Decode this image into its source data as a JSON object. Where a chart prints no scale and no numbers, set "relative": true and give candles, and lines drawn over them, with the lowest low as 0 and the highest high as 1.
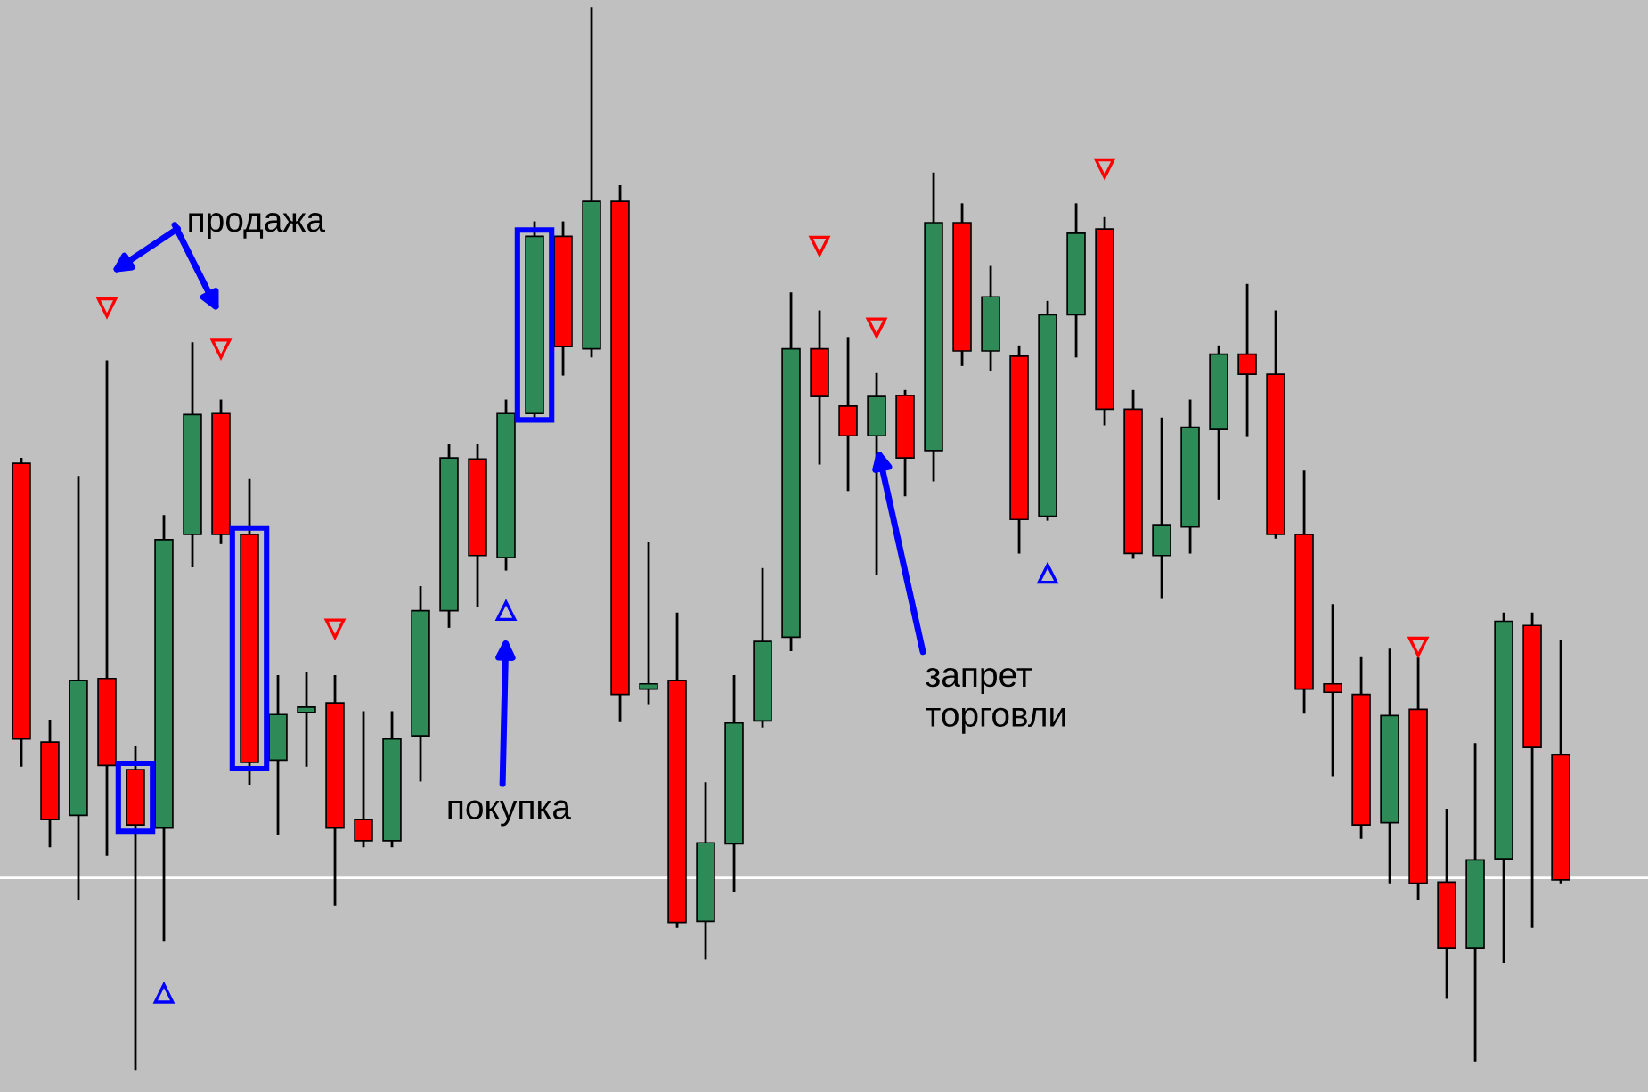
{
  "chart_data": {
    "type": "candlestick",
    "relative": true,
    "categories": [
      null,
      null,
      null,
      null,
      null,
      null,
      null,
      null,
      null,
      null,
      null,
      null,
      null,
      null,
      null,
      null,
      null,
      null,
      null,
      null,
      null,
      null,
      null,
      null,
      null,
      null,
      null,
      null,
      null,
      null,
      null,
      null,
      null,
      null,
      null,
      null,
      null,
      null,
      null,
      null,
      null,
      null,
      null,
      null,
      null,
      null,
      null,
      null,
      null,
      null,
      null,
      null,
      null,
      null,
      null
    ],
    "ohlc": [
      [
        0.571,
        0.575,
        0.286,
        0.311
      ],
      [
        0.308,
        0.328,
        0.21,
        0.235
      ],
      [
        0.239,
        0.558,
        0.16,
        0.366
      ],
      [
        0.368,
        0.667,
        0.202,
        0.286
      ],
      [
        0.282,
        0.303,
        0.0,
        0.23
      ],
      [
        0.227,
        0.521,
        0.121,
        0.499
      ],
      [
        0.504,
        0.684,
        0.474,
        0.617
      ],
      [
        0.618,
        0.63,
        0.496,
        0.504
      ],
      [
        0.504,
        0.555,
        0.269,
        0.289
      ],
      [
        0.291,
        0.37,
        0.222,
        0.334
      ],
      [
        0.336,
        0.373,
        0.286,
        0.341
      ],
      [
        0.345,
        0.37,
        0.155,
        0.227
      ],
      [
        0.235,
        0.336,
        0.21,
        0.215
      ],
      [
        0.215,
        0.336,
        0.21,
        0.311
      ],
      [
        0.314,
        0.454,
        0.272,
        0.432
      ],
      [
        0.432,
        0.588,
        0.417,
        0.576
      ],
      [
        0.575,
        0.588,
        0.437,
        0.484
      ],
      [
        0.482,
        0.63,
        0.471,
        0.618
      ],
      [
        0.618,
        0.798,
        0.613,
        0.785
      ],
      [
        0.785,
        0.798,
        0.655,
        0.681
      ],
      [
        0.679,
        1.0,
        0.672,
        0.818
      ],
      [
        0.818,
        0.832,
        0.328,
        0.353
      ],
      [
        0.358,
        0.496,
        0.345,
        0.363
      ],
      [
        0.366,
        0.429,
        0.134,
        0.138
      ],
      [
        0.139,
        0.269,
        0.104,
        0.213
      ],
      [
        0.212,
        0.37,
        0.168,
        0.326
      ],
      [
        0.328,
        0.471,
        0.323,
        0.403
      ],
      [
        0.407,
        0.731,
        0.395,
        0.679
      ],
      [
        0.679,
        0.714,
        0.571,
        0.634
      ],
      [
        0.625,
        0.689,
        0.546,
        0.597
      ],
      [
        0.597,
        0.655,
        0.467,
        0.634
      ],
      [
        0.635,
        0.639,
        0.541,
        0.576
      ],
      [
        0.583,
        0.844,
        0.555,
        0.798
      ],
      [
        0.798,
        0.815,
        0.664,
        0.677
      ],
      [
        0.677,
        0.756,
        0.659,
        0.728
      ],
      [
        0.672,
        0.681,
        0.487,
        0.518
      ],
      [
        0.521,
        0.723,
        0.518,
        0.711
      ],
      [
        0.711,
        0.815,
        0.672,
        0.788
      ],
      [
        0.792,
        0.802,
        0.608,
        0.622
      ],
      [
        0.622,
        0.639,
        0.482,
        0.486
      ],
      [
        0.484,
        0.613,
        0.445,
        0.513
      ],
      [
        0.511,
        0.63,
        0.487,
        0.605
      ],
      [
        0.603,
        0.681,
        0.538,
        0.674
      ],
      [
        0.674,
        0.739,
        0.597,
        0.655
      ],
      [
        0.655,
        0.714,
        0.501,
        0.504
      ],
      [
        0.504,
        0.563,
        0.336,
        0.358
      ],
      [
        0.363,
        0.437,
        0.277,
        0.355
      ],
      [
        0.353,
        0.387,
        0.218,
        0.23
      ],
      [
        0.232,
        0.395,
        0.176,
        0.333
      ],
      [
        0.339,
        0.387,
        0.16,
        0.175
      ],
      [
        0.176,
        0.244,
        0.067,
        0.114
      ],
      [
        0.114,
        0.306,
        0.008,
        0.197
      ],
      [
        0.198,
        0.429,
        0.101,
        0.422
      ],
      [
        0.418,
        0.429,
        0.134,
        0.303
      ],
      [
        0.296,
        0.403,
        0.176,
        0.178
      ]
    ],
    "colors": [
      "#ff0000",
      "#ff0000",
      "#2e8b57",
      "#ff0000",
      "#ff0000",
      "#2e8b57",
      "#2e8b57",
      "#ff0000",
      "#ff0000",
      "#2e8b57",
      "#2e8b57",
      "#ff0000",
      "#ff0000",
      "#2e8b57",
      "#2e8b57",
      "#2e8b57",
      "#ff0000",
      "#2e8b57",
      "#2e8b57",
      "#ff0000",
      "#2e8b57",
      "#ff0000",
      "#2e8b57",
      "#ff0000",
      "#2e8b57",
      "#2e8b57",
      "#2e8b57",
      "#2e8b57",
      "#ff0000",
      "#ff0000",
      "#2e8b57",
      "#ff0000",
      "#2e8b57",
      "#ff0000",
      "#2e8b57",
      "#ff0000",
      "#2e8b57",
      "#2e8b57",
      "#ff0000",
      "#ff0000",
      "#2e8b57",
      "#2e8b57",
      "#2e8b57",
      "#ff0000",
      "#ff0000",
      "#ff0000",
      "#ff0000",
      "#ff0000",
      "#2e8b57",
      "#ff0000",
      "#ff0000",
      "#2e8b57",
      "#2e8b57",
      "#ff0000",
      "#ff0000"
    ],
    "series": [
      {
        "type": "scatter",
        "color": "#ff0000",
        "marker": "triangle",
        "values": [
          null,
          null,
          null,
          0.718,
          null,
          null,
          null,
          0.679,
          null,
          null,
          null,
          0.415,
          null,
          null,
          null,
          null,
          null,
          null,
          null,
          null,
          null,
          null,
          null,
          null,
          null,
          null,
          null,
          null,
          0.776,
          null,
          0.699,
          null,
          null,
          null,
          null,
          null,
          null,
          null,
          0.849,
          null,
          null,
          null,
          null,
          null,
          null,
          null,
          null,
          null,
          null,
          0.398,
          null,
          null,
          null,
          null,
          null
        ]
      },
      {
        "type": "scatter",
        "color": "#0000ff",
        "marker": "triangle",
        "values": [
          null,
          null,
          null,
          null,
          null,
          0.071,
          null,
          null,
          null,
          null,
          null,
          null,
          null,
          null,
          null,
          null,
          null,
          0.432,
          null,
          null,
          null,
          null,
          null,
          null,
          null,
          null,
          null,
          null,
          null,
          null,
          null,
          null,
          null,
          null,
          null,
          null,
          0.467,
          null,
          null,
          null,
          null,
          null,
          null,
          null,
          null,
          null,
          null,
          null,
          null,
          null,
          null,
          null,
          null,
          null,
          null
        ]
      }
    ],
    "ref_lines": [
      {
        "axis": "y",
        "value": 0.18,
        "color": "#ffffff"
      }
    ],
    "annotations": [
      "продажа",
      "покупка",
      "запрет\nторговли"
    ]
  }
}
